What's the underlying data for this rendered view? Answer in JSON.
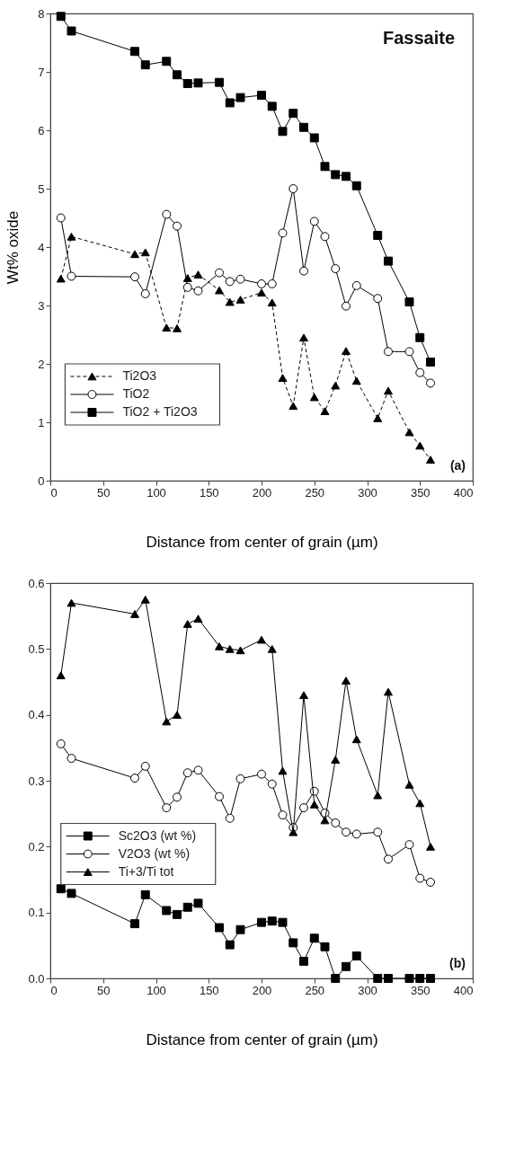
{
  "chart_data": [
    {
      "type": "line",
      "ylabel": "Wt%  oxide",
      "xlabel": "Distance from center of grain (µm)",
      "annotations": [
        "Fassaite",
        "(a)"
      ],
      "x": [
        10,
        20,
        80,
        90,
        110,
        120,
        130,
        140,
        160,
        170,
        180,
        200,
        210,
        220,
        230,
        240,
        250,
        260,
        270,
        280,
        290,
        310,
        320,
        340,
        350,
        360
      ],
      "series": [
        {
          "name": "Ti2O3",
          "color": "#000000",
          "marker": "triangle",
          "line_style": "dashed",
          "values": [
            3.46,
            4.18,
            3.88,
            3.91,
            2.62,
            2.61,
            3.47,
            3.53,
            3.26,
            3.06,
            3.1,
            3.22,
            3.05,
            1.76,
            1.28,
            2.45,
            1.43,
            1.19,
            1.63,
            2.22,
            1.71,
            1.07,
            1.54,
            0.83,
            0.6,
            0.36
          ]
        },
        {
          "name": "TiO2",
          "color": "#000000",
          "marker": "circle",
          "line_style": "solid",
          "values": [
            4.5,
            3.5,
            3.49,
            3.2,
            4.56,
            4.36,
            3.31,
            3.25,
            3.56,
            3.41,
            3.45,
            3.37,
            3.37,
            4.24,
            5.0,
            3.59,
            4.44,
            4.18,
            3.63,
            2.99,
            3.34,
            3.12,
            2.21,
            2.21,
            1.85,
            1.67
          ]
        },
        {
          "name": "TiO2 + Ti2O3",
          "color": "#000000",
          "marker": "square",
          "line_style": "solid",
          "values": [
            7.95,
            7.7,
            7.35,
            7.12,
            7.18,
            6.95,
            6.8,
            6.81,
            6.82,
            6.47,
            6.56,
            6.6,
            6.41,
            5.98,
            6.29,
            6.05,
            5.87,
            5.38,
            5.24,
            5.21,
            5.05,
            4.2,
            3.76,
            3.06,
            2.45,
            2.03
          ]
        }
      ],
      "xlim": [
        0,
        400
      ],
      "xticks": [
        0,
        50,
        100,
        150,
        200,
        250,
        300,
        350,
        400
      ],
      "ylim": [
        0,
        8
      ],
      "yticks": [
        0,
        1,
        2,
        3,
        4,
        5,
        6,
        7,
        8
      ],
      "grid": false,
      "legend": "bottom left"
    },
    {
      "type": "line",
      "xlabel": "Distance from center of grain (µm)",
      "annotations": [
        "(b)"
      ],
      "x": [
        10,
        20,
        80,
        90,
        110,
        120,
        130,
        140,
        160,
        170,
        180,
        200,
        210,
        220,
        230,
        240,
        250,
        260,
        270,
        280,
        290,
        310,
        320,
        340,
        350,
        360
      ],
      "series": [
        {
          "name": "Sc2O3  (wt  %)",
          "color": "#000000",
          "marker": "square",
          "line_style": "solid",
          "values": [
            0.136,
            0.129,
            0.083,
            0.127,
            0.103,
            0.097,
            0.108,
            0.114,
            0.077,
            0.051,
            0.074,
            0.085,
            0.087,
            0.085,
            0.054,
            0.026,
            0.061,
            0.048,
            0,
            0.018,
            0.034,
            0,
            0,
            0,
            0,
            0
          ]
        },
        {
          "name": "V2O3   (wt  %)",
          "color": "#000000",
          "marker": "circle",
          "line_style": "solid",
          "values": [
            0.356,
            0.334,
            0.304,
            0.322,
            0.259,
            0.275,
            0.312,
            0.316,
            0.276,
            0.243,
            0.303,
            0.31,
            0.295,
            0.248,
            0.229,
            0.259,
            0.284,
            0.251,
            0.236,
            0.222,
            0.219,
            0.222,
            0.181,
            0.203,
            0.152,
            0.146
          ]
        },
        {
          "name": "Ti+3/Ti tot",
          "color": "#000000",
          "marker": "triangle",
          "line_style": "solid",
          "values": [
            0.46,
            0.57,
            0.553,
            0.575,
            0.39,
            0.4,
            0.538,
            0.546,
            0.504,
            0.5,
            0.498,
            0.514,
            0.5,
            0.315,
            0.222,
            0.43,
            0.264,
            0.24,
            0.332,
            0.452,
            0.363,
            0.278,
            0.435,
            0.294,
            0.266,
            0.2
          ]
        }
      ],
      "xlim": [
        0,
        400
      ],
      "xticks": [
        0,
        50,
        100,
        150,
        200,
        250,
        300,
        350,
        400
      ],
      "ylim": [
        0,
        0.6
      ],
      "yticks": [
        {
          "value": 0,
          "label": "0.0"
        },
        {
          "value": 0.1,
          "label": "0.1"
        },
        {
          "value": 0.2,
          "label": "0.2"
        },
        {
          "value": 0.3,
          "label": "0.3"
        },
        {
          "value": 0.4,
          "label": "0.4"
        },
        {
          "value": 0.5,
          "label": "0.5"
        },
        {
          "value": 0.6,
          "label": "0.6"
        }
      ],
      "grid": false,
      "legend": "left"
    }
  ]
}
